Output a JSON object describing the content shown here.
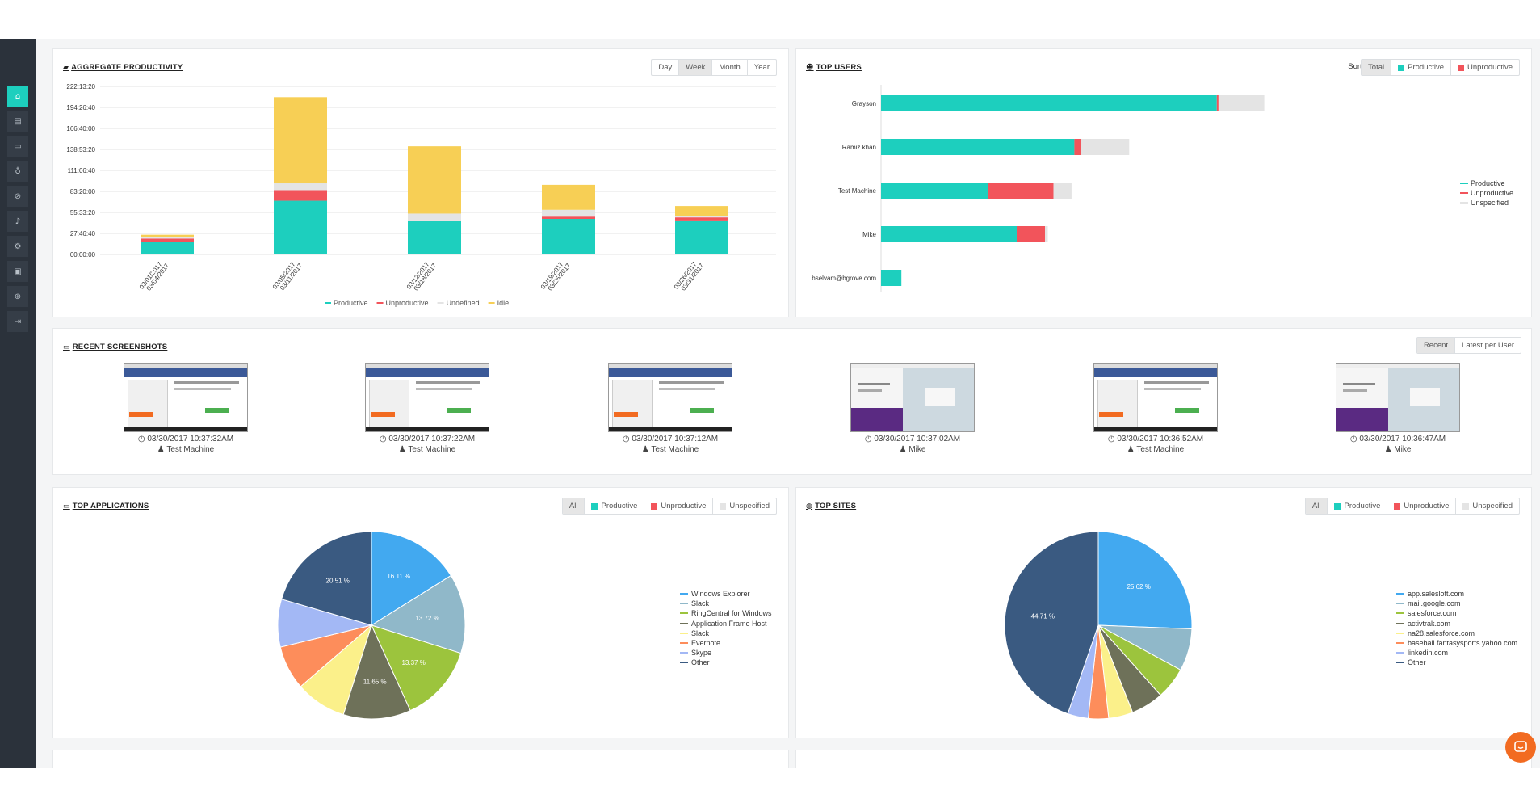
{
  "sidebar": {
    "items": [
      {
        "icon": "home-icon",
        "glyph": "⌂",
        "active": true
      },
      {
        "icon": "document-icon",
        "glyph": "▤"
      },
      {
        "icon": "monitor-icon",
        "glyph": "▭"
      },
      {
        "icon": "bulb-icon",
        "glyph": "♁"
      },
      {
        "icon": "ban-icon",
        "glyph": "⊘"
      },
      {
        "icon": "bell-icon",
        "glyph": "♪"
      },
      {
        "icon": "users-cog-icon",
        "glyph": "⚙"
      },
      {
        "icon": "id-card-icon",
        "glyph": "▣"
      },
      {
        "icon": "support-icon",
        "glyph": "⊕"
      },
      {
        "icon": "sign-out-icon",
        "glyph": "⇥"
      }
    ]
  },
  "colors": {
    "productive": "#1dcfbe",
    "unproductive": "#f2545b",
    "undefined": "#e4e4e4",
    "idle": "#f7cf55",
    "teal": "#1dcfbe"
  },
  "productivity": {
    "title": "AGGREGATE PRODUCTIVITY",
    "ranges": [
      "Day",
      "Week",
      "Month",
      "Year"
    ],
    "active_range": "Week",
    "chart_data": {
      "type": "bar",
      "stacked": true,
      "y_ticks": [
        "222:13:20",
        "194:26:40",
        "166:40:00",
        "138:53:20",
        "111:06:40",
        "83:20:00",
        "55:33:20",
        "27:46:40",
        "00:00:00"
      ],
      "ylim_hours": [
        0,
        222.222
      ],
      "categories": [
        [
          "03/01/2017",
          "03/04/2017"
        ],
        [
          "03/05/2017",
          "03/11/2017"
        ],
        [
          "03/12/2017",
          "03/18/2017"
        ],
        [
          "03/19/2017",
          "03/25/2017"
        ],
        [
          "03/26/2017",
          "03/31/2017"
        ]
      ],
      "series": [
        {
          "name": "Productive",
          "values": [
            17,
            71,
            44,
            47,
            45
          ]
        },
        {
          "name": "Unproductive",
          "values": [
            4,
            14,
            1,
            3,
            4
          ]
        },
        {
          "name": "Undefined",
          "values": [
            2,
            9,
            9,
            9,
            2
          ]
        },
        {
          "name": "Idle",
          "values": [
            3,
            114,
            89,
            33,
            13
          ]
        }
      ],
      "legend": "bottom"
    }
  },
  "top_users": {
    "title": "TOP USERS",
    "sort_label": "Sort by:",
    "sort_options": [
      {
        "label": "Total",
        "swatch": ""
      },
      {
        "label": "Productive",
        "swatch": "#1dcfbe"
      },
      {
        "label": "Unproductive",
        "swatch": "#f2545b"
      }
    ],
    "active_sort": "Total",
    "chart_data": {
      "type": "bar",
      "orientation": "horizontal",
      "stacked": true,
      "categories": [
        "Grayson",
        "Ramiz khan",
        "Test Machine",
        "Mike",
        "bselvam@bgrove.com"
      ],
      "series": [
        {
          "name": "Productive",
          "values": [
            594,
            342,
            189,
            240,
            36
          ]
        },
        {
          "name": "Unproductive",
          "values": [
            3,
            11,
            116,
            50,
            0
          ]
        },
        {
          "name": "Unspecified",
          "values": [
            81,
            86,
            32,
            5,
            0
          ]
        }
      ],
      "xlim": [
        0,
        1000
      ],
      "legend": "right"
    }
  },
  "screenshots": {
    "title": "RECENT SCREENSHOTS",
    "tabs": [
      "Recent",
      "Latest per User"
    ],
    "active_tab": "Recent",
    "items": [
      {
        "time": "03/30/2017 10:37:32AM",
        "user": "Test Machine",
        "kind": "facebook"
      },
      {
        "time": "03/30/2017 10:37:22AM",
        "user": "Test Machine",
        "kind": "facebook"
      },
      {
        "time": "03/30/2017 10:37:12AM",
        "user": "Test Machine",
        "kind": "facebook"
      },
      {
        "time": "03/30/2017 10:37:02AM",
        "user": "Mike",
        "kind": "site"
      },
      {
        "time": "03/30/2017 10:36:52AM",
        "user": "Test Machine",
        "kind": "facebook"
      },
      {
        "time": "03/30/2017 10:36:47AM",
        "user": "Mike",
        "kind": "site"
      }
    ]
  },
  "filters": [
    {
      "label": "All",
      "swatch": ""
    },
    {
      "label": "Productive",
      "swatch": "#1dcfbe"
    },
    {
      "label": "Unproductive",
      "swatch": "#f2545b"
    },
    {
      "label": "Unspecified",
      "swatch": "#e4e4e4"
    }
  ],
  "top_apps": {
    "title": "TOP APPLICATIONS",
    "chart_data": {
      "type": "pie",
      "slices": [
        {
          "name": "Windows Explorer",
          "value": 16.11,
          "color": "#42a9f0",
          "label": "16.11 %"
        },
        {
          "name": "Slack",
          "value": 13.72,
          "color": "#90b8c9",
          "label": "13.72 %"
        },
        {
          "name": "RingCentral for Windows",
          "value": 13.37,
          "color": "#9cc43d",
          "label": "13.37 %"
        },
        {
          "name": "Application Frame Host",
          "value": 11.65,
          "color": "#6e7159",
          "label": "11.65 %"
        },
        {
          "name": "Slack",
          "value": 8.8,
          "color": "#fbf08a",
          "label": ""
        },
        {
          "name": "Evernote",
          "value": 7.6,
          "color": "#fd8d5b",
          "label": ""
        },
        {
          "name": "Skype",
          "value": 8.24,
          "color": "#a3b8f5",
          "label": ""
        },
        {
          "name": "Other",
          "value": 20.51,
          "color": "#3a5a81",
          "label": "20.51 %"
        }
      ],
      "legend": "right"
    }
  },
  "top_sites": {
    "title": "TOP SITES",
    "chart_data": {
      "type": "pie",
      "slices": [
        {
          "name": "app.salesloft.com",
          "value": 25.62,
          "color": "#42a9f0",
          "label": "25.62 %"
        },
        {
          "name": "mail.google.com",
          "value": 7.3,
          "color": "#90b8c9",
          "label": ""
        },
        {
          "name": "salesforce.com",
          "value": 5.5,
          "color": "#9cc43d",
          "label": ""
        },
        {
          "name": "activtrak.com",
          "value": 5.6,
          "color": "#6e7159",
          "label": ""
        },
        {
          "name": "na28.salesforce.com",
          "value": 4.2,
          "color": "#fbf08a",
          "label": ""
        },
        {
          "name": "baseball.fantasysports.yahoo.com",
          "value": 3.5,
          "color": "#fd8d5b",
          "label": ""
        },
        {
          "name": "linkedin.com",
          "value": 3.57,
          "color": "#a3b8f5",
          "label": ""
        },
        {
          "name": "Other",
          "value": 44.71,
          "color": "#3a5a81",
          "label": "44.71 %"
        }
      ],
      "legend": "right"
    }
  }
}
